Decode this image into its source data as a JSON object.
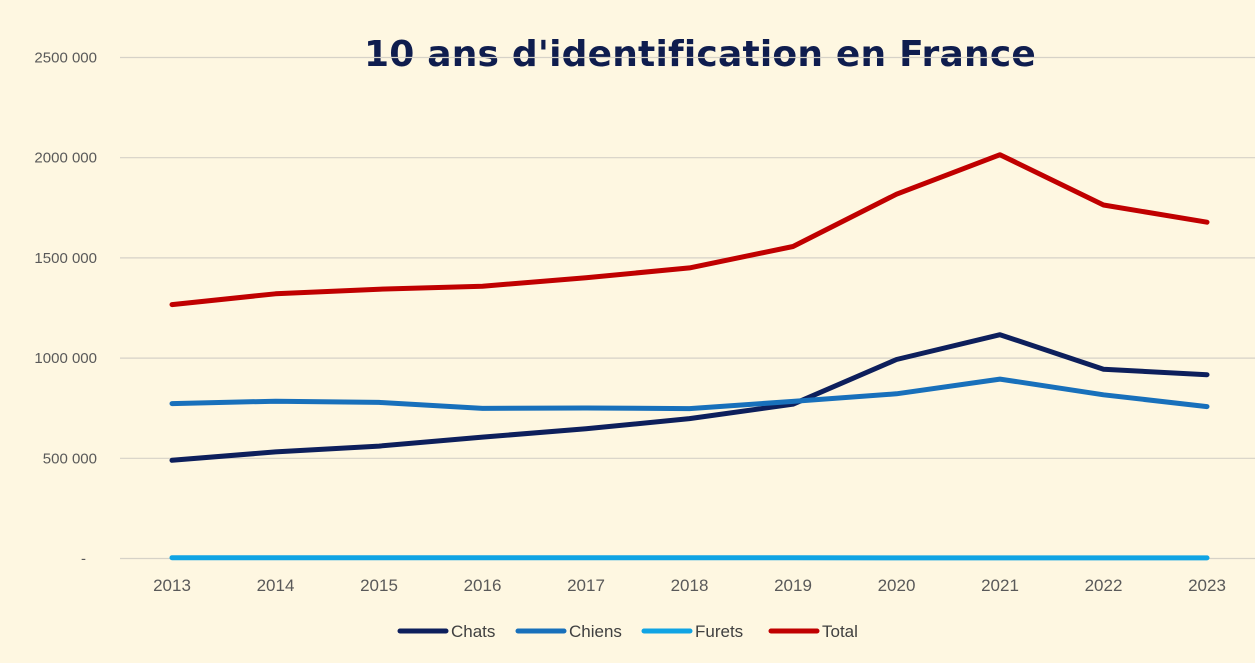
{
  "chart_data": {
    "type": "line",
    "title": "10 ans d'identification en France",
    "categories": [
      "2013",
      "2014",
      "2015",
      "2016",
      "2017",
      "2018",
      "2019",
      "2020",
      "2021",
      "2022",
      "2023"
    ],
    "y_ticks": [
      {
        "value": 0,
        "label": "-"
      },
      {
        "value": 500000,
        "label": "500 000"
      },
      {
        "value": 1000000,
        "label": "1000 000"
      },
      {
        "value": 1500000,
        "label": "1500 000"
      },
      {
        "value": 2000000,
        "label": "2000 000"
      },
      {
        "value": 2500000,
        "label": "2500 000"
      }
    ],
    "ylim": [
      0,
      2500000
    ],
    "grid": true,
    "legend_position": "bottom",
    "series": [
      {
        "name": "Chats",
        "color": "#0d1f5c",
        "values": [
          490000,
          532000,
          561000,
          606000,
          647000,
          698000,
          770000,
          993000,
          1117000,
          944000,
          917000
        ]
      },
      {
        "name": "Chiens",
        "color": "#1870bb",
        "values": [
          773000,
          785000,
          779000,
          749000,
          751000,
          748000,
          784000,
          822000,
          895000,
          817000,
          758000
        ]
      },
      {
        "name": "Furets",
        "color": "#10a4e4",
        "values": [
          4000,
          4000,
          3500,
          3500,
          3500,
          3500,
          3500,
          3000,
          3000,
          3000,
          3000
        ]
      },
      {
        "name": "Total",
        "color": "#c00000",
        "values": [
          1267000,
          1321000,
          1344000,
          1359000,
          1401000,
          1450000,
          1557000,
          1818000,
          2015000,
          1764000,
          1678000
        ]
      }
    ]
  }
}
